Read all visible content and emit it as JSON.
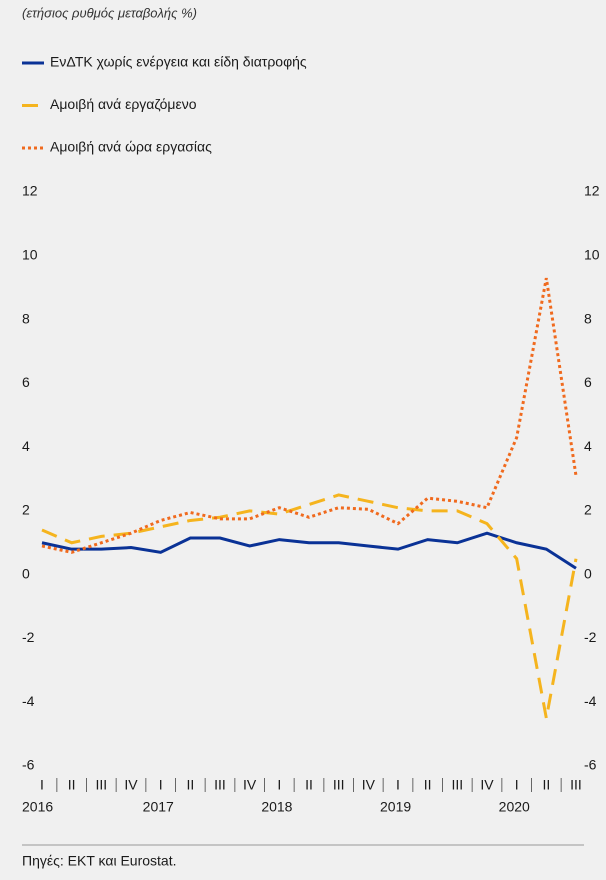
{
  "chart_data": {
    "type": "line",
    "subtitle": "(ετήσιος ρυθμός μεταβολής %)",
    "categories": [
      "I",
      "II",
      "III",
      "IV",
      "I",
      "II",
      "III",
      "IV",
      "I",
      "II",
      "III",
      "IV",
      "I",
      "II",
      "III",
      "IV",
      "I",
      "II",
      "III"
    ],
    "category_groups": [
      "2016",
      "2017",
      "2018",
      "2019",
      "2020"
    ],
    "series": [
      {
        "name": "ΕνΔΤΚ χωρίς ενέργεια και είδη διατροφής",
        "color": "#0a3296",
        "style": "solid",
        "values": [
          1.0,
          0.8,
          0.8,
          0.85,
          0.7,
          1.15,
          1.15,
          0.9,
          1.1,
          1.0,
          1.0,
          0.9,
          0.8,
          1.1,
          1.0,
          1.3,
          1.0,
          0.8,
          0.2
        ]
      },
      {
        "name": "Αμοιβή ανά εργαζόμενο",
        "color": "#f5b41e",
        "style": "dashed",
        "values": [
          1.4,
          1.0,
          1.2,
          1.3,
          1.5,
          1.7,
          1.8,
          2.0,
          1.9,
          2.2,
          2.5,
          2.3,
          2.1,
          2.0,
          2.0,
          1.6,
          0.5,
          -4.5,
          0.5
        ]
      },
      {
        "name": "Αμοιβή ανά ώρα εργασίας",
        "color": "#f06a1e",
        "style": "dotted",
        "values": [
          0.9,
          0.7,
          1.0,
          1.3,
          1.7,
          1.95,
          1.75,
          1.75,
          2.1,
          1.8,
          2.1,
          2.05,
          1.6,
          2.4,
          2.3,
          2.1,
          4.3,
          9.3,
          3.1
        ]
      }
    ],
    "ylim": [
      -6,
      12
    ],
    "yticks": [
      -6,
      -4,
      -2,
      0,
      2,
      4,
      6,
      8,
      10,
      12
    ],
    "y2lim": [
      -6,
      12
    ],
    "y2ticks": [
      -6,
      -4,
      -2,
      0,
      2,
      4,
      6,
      8,
      10,
      12
    ],
    "source": "Πηγές: ΕΚΤ και Eurostat."
  }
}
